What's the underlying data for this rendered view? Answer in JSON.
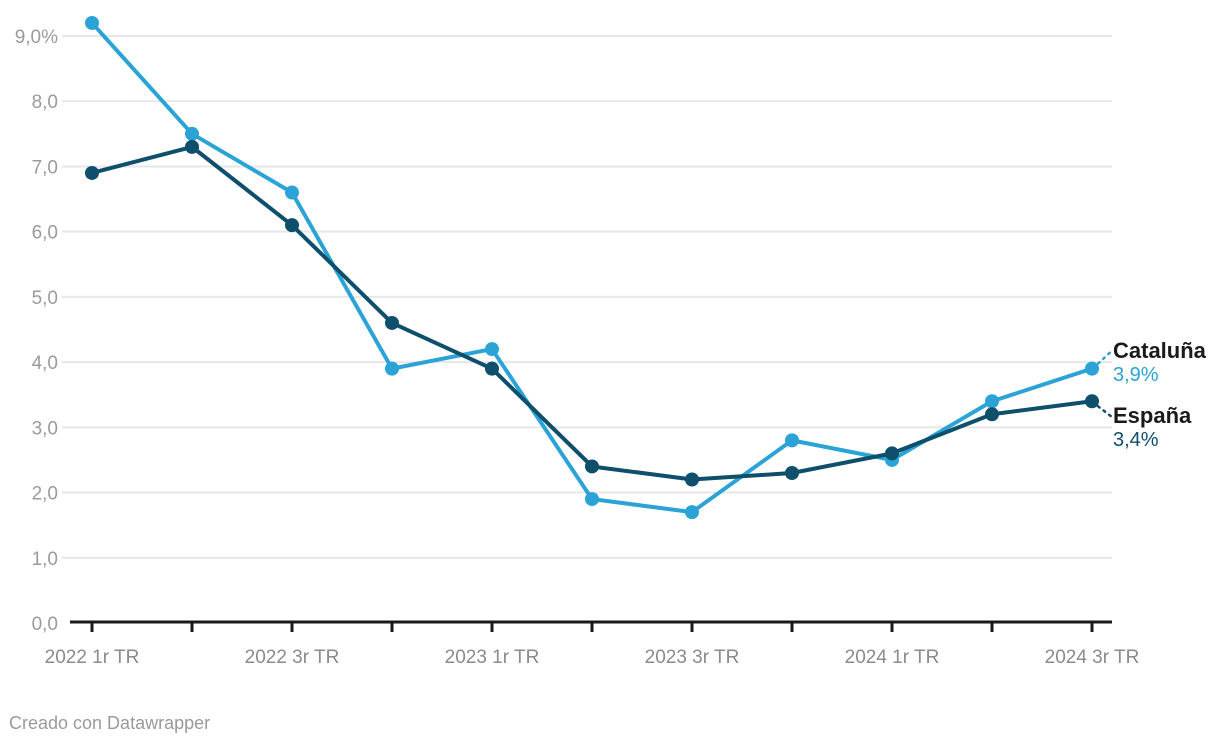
{
  "chart_data": {
    "type": "line",
    "n_points": 11,
    "x_tick_labels": [
      "2022 1r TR",
      "2022 3r TR",
      "2023 1r TR",
      "2023 3r TR",
      "2024 1r TR",
      "2024 3r TR"
    ],
    "labeled_tick_indices": [
      0,
      2,
      4,
      6,
      8,
      10
    ],
    "y_tick_labels": [
      "0,0",
      "1,0",
      "2,0",
      "3,0",
      "4,0",
      "5,0",
      "6,0",
      "7,0",
      "8,0",
      "9,0%"
    ],
    "ylim": [
      0,
      9
    ],
    "grid": "horizontal",
    "legend_position": "end-of-line-labels-right",
    "series": [
      {
        "name": "Cataluña",
        "color": "#2BA3D7",
        "end_label": "3,9%",
        "values": [
          9.2,
          7.5,
          6.6,
          3.9,
          4.2,
          1.9,
          1.7,
          2.8,
          2.5,
          3.4,
          3.9
        ]
      },
      {
        "name": "España",
        "color": "#0E4F6C",
        "end_label": "3,4%",
        "values": [
          6.9,
          7.3,
          6.1,
          4.6,
          3.9,
          2.4,
          2.2,
          2.3,
          2.6,
          3.2,
          3.4
        ]
      }
    ]
  },
  "colors": {
    "background": "#ffffff",
    "gridline": "#e7e7e7",
    "axis_line": "#1a1a1a",
    "y_tick_label": "#9b9b9b",
    "x_tick_label": "#8b8b8b",
    "series_name_label": "#1a1a1a",
    "credit_text": "#9a9a9a"
  },
  "footer": {
    "credit": "Creado con Datawrapper"
  }
}
